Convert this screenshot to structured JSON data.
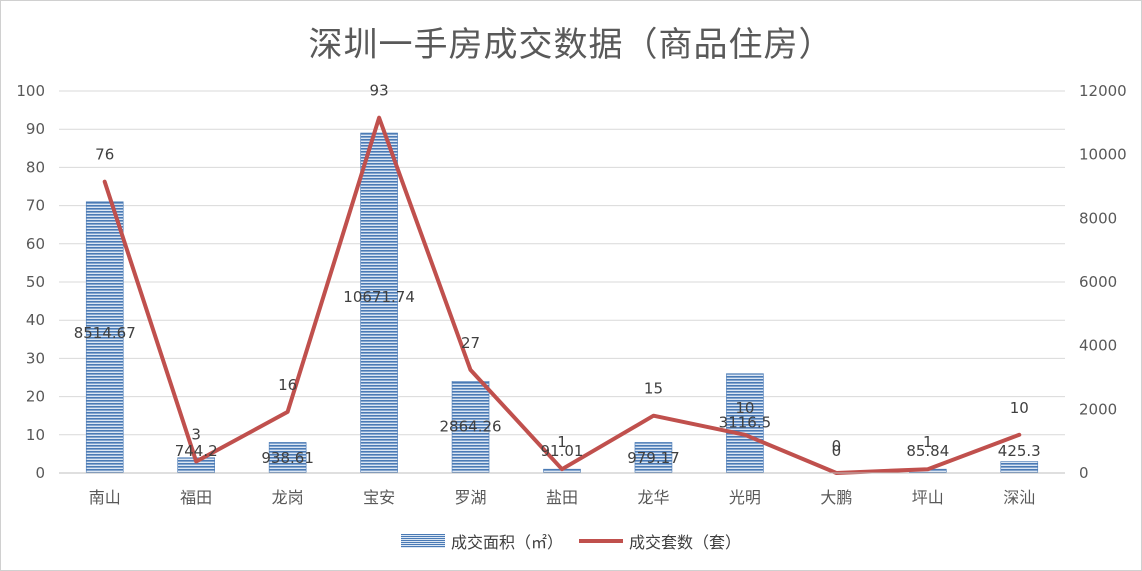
{
  "chart_data": {
    "type": "bar",
    "title": "深圳一手房成交数据（商品住房）",
    "categories": [
      "南山",
      "福田",
      "龙岗",
      "宝安",
      "罗湖",
      "盐田",
      "龙华",
      "光明",
      "大鹏",
      "坪山",
      "深汕"
    ],
    "left_axis": {
      "ticks": [
        "0",
        "10",
        "20",
        "30",
        "40",
        "50",
        "60",
        "70",
        "80",
        "90",
        "100"
      ],
      "ylim": [
        0,
        100
      ]
    },
    "right_axis": {
      "ticks": [
        "0",
        "2000",
        "4000",
        "6000",
        "8000",
        "10000",
        "12000"
      ],
      "ylim": [
        0,
        12000
      ]
    },
    "series": [
      {
        "name": "成交面积（㎡）",
        "type": "bar",
        "axis": "left",
        "color": "#4a7ab5",
        "values": [
          71,
          4,
          8,
          89,
          24,
          1,
          8,
          26,
          0,
          1,
          3
        ],
        "data_labels": [
          "8514.67",
          "744.2",
          "938.61",
          "10671.74",
          "2864.26",
          "91.01",
          "979.17",
          "3116.5",
          "0",
          "85.84",
          "425.3"
        ]
      },
      {
        "name": "成交套数（套）",
        "type": "line",
        "axis": "right",
        "color": "#c0504d",
        "values": [
          9150,
          360,
          1920,
          11160,
          3240,
          120,
          1800,
          1200,
          0,
          120,
          1200
        ],
        "data_labels": [
          "76",
          "3",
          "16",
          "93",
          "27",
          "1",
          "15",
          "10",
          "0",
          "1",
          "10"
        ]
      }
    ],
    "grid": true,
    "legend_position": "bottom"
  }
}
